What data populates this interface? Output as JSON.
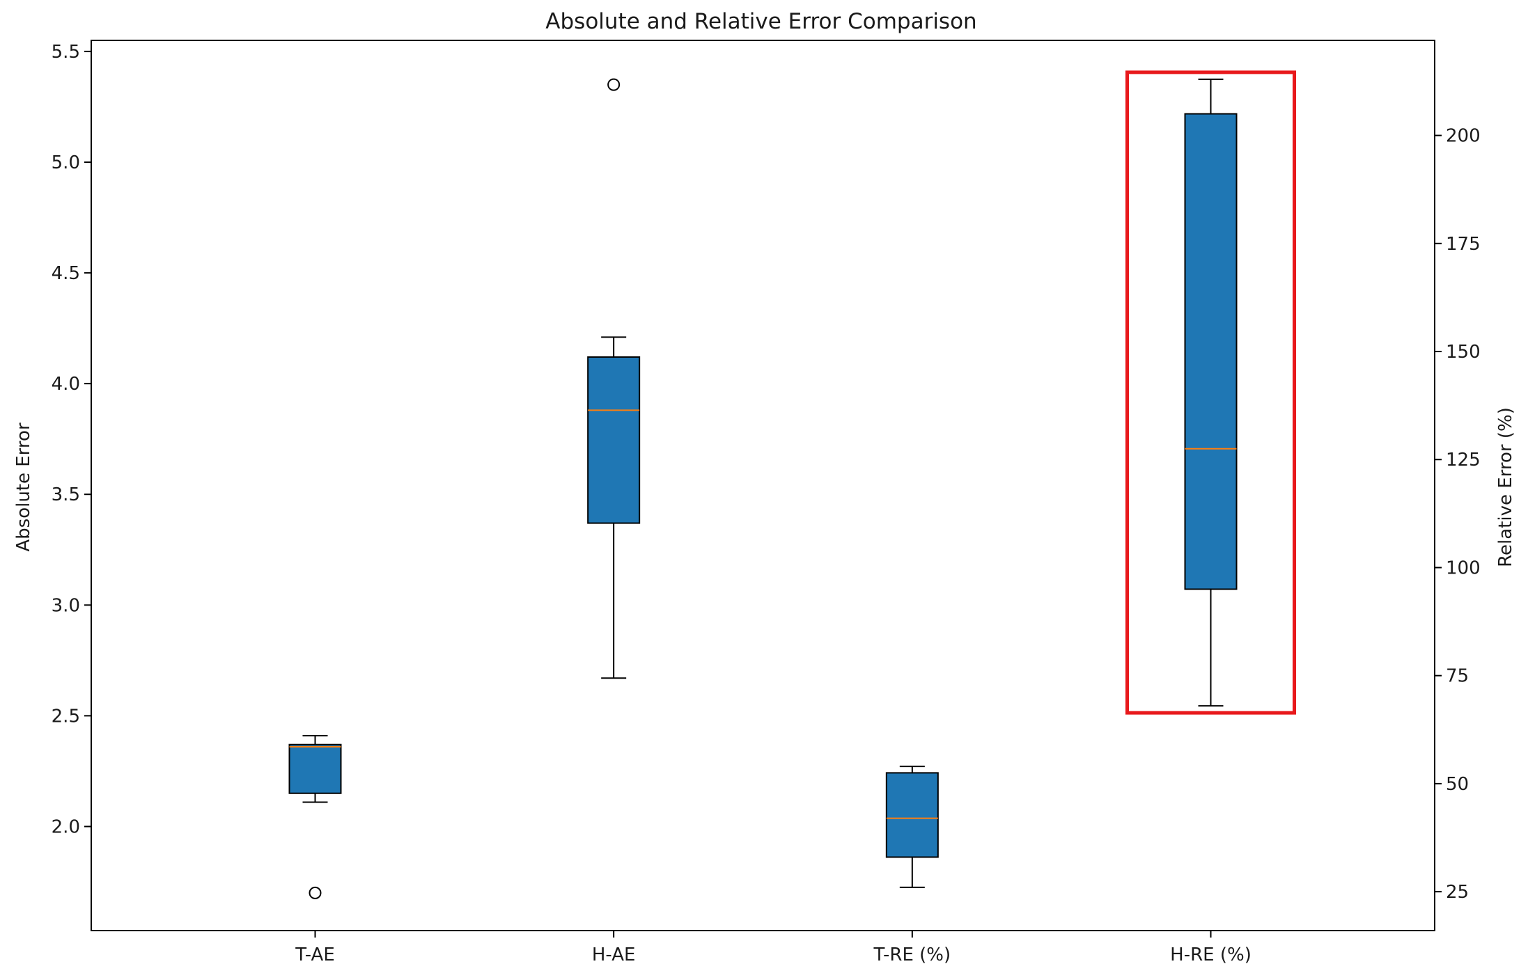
{
  "chart_data": {
    "type": "box",
    "title": "Absolute and Relative Error Comparison",
    "categories": [
      "T-AE",
      "H-AE",
      "T-RE (%)",
      "H-RE (%)"
    ],
    "ylabel_left": "Absolute Error",
    "ylabel_right": "Relative Error (%)",
    "ylim_left": [
      1.53,
      5.55
    ],
    "ylim_right": [
      16,
      222
    ],
    "yticks_left": [
      "2.0",
      "2.5",
      "3.0",
      "3.5",
      "4.0",
      "4.5",
      "5.0",
      "5.5"
    ],
    "yticks_right": [
      "25",
      "50",
      "75",
      "100",
      "125",
      "150",
      "175",
      "200"
    ],
    "boxes": [
      {
        "category": "T-AE",
        "axis": "left",
        "whisker_low": 2.11,
        "q1": 2.15,
        "median": 2.36,
        "q3": 2.37,
        "whisker_high": 2.41,
        "outliers": [
          1.7
        ]
      },
      {
        "category": "H-AE",
        "axis": "left",
        "whisker_low": 2.67,
        "q1": 3.37,
        "median": 3.88,
        "q3": 4.12,
        "whisker_high": 4.21,
        "outliers": [
          5.35
        ]
      },
      {
        "category": "T-RE (%)",
        "axis": "right",
        "whisker_low": 26,
        "q1": 33,
        "median": 42,
        "q3": 52.5,
        "whisker_high": 54,
        "outliers": []
      },
      {
        "category": "H-RE (%)",
        "axis": "right",
        "whisker_low": 68,
        "q1": 95,
        "median": 127.5,
        "q3": 205,
        "whisker_high": 213,
        "outliers": []
      }
    ],
    "highlight": {
      "category": "H-RE (%)",
      "color": "#e8191c"
    },
    "colors": {
      "box_fill": "#1f77b4",
      "median": "#ff7f0e",
      "edge": "#000000"
    },
    "grid": false,
    "legend": "none"
  }
}
